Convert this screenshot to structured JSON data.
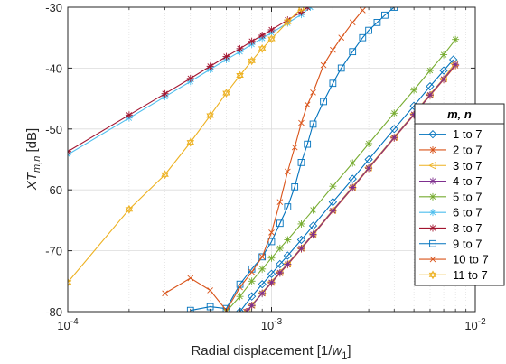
{
  "chart_data": {
    "type": "line",
    "xscale": "log",
    "xlim": [
      0.0001,
      0.01
    ],
    "ylim": [
      -80,
      -30
    ],
    "xlabel_main": "Radial displacement [1/",
    "xlabel_var": "w",
    "xlabel_sub": "1",
    "xlabel_end": "]",
    "ylabel_main": "XT",
    "ylabel_sub": "m,n",
    "ylabel_unit": " [dB]",
    "x_ticks": [
      {
        "value": 0.0001,
        "base": "10",
        "exp": "-4"
      },
      {
        "value": 0.001,
        "base": "10",
        "exp": "-3"
      },
      {
        "value": 0.01,
        "base": "10",
        "exp": "-2"
      }
    ],
    "y_ticks": [
      -80,
      -70,
      -60,
      -50,
      -40,
      -30
    ],
    "grid": true,
    "minor_grid_x": true,
    "legend_title": "m, n",
    "legend_position": "right",
    "series": [
      {
        "name": "1 to 7",
        "color": "#0072BD",
        "marker": "diamond",
        "x": [
          0.0007,
          0.0008,
          0.0009,
          0.001,
          0.0011,
          0.0012,
          0.0014,
          0.0016,
          0.002,
          0.0025,
          0.003,
          0.004,
          0.005,
          0.006,
          0.007,
          0.0078
        ],
        "y": [
          -80,
          -77.5,
          -75.5,
          -73.8,
          -72.2,
          -70.8,
          -68.2,
          -65.9,
          -62,
          -58.2,
          -55,
          -50,
          -46.2,
          -43,
          -40.4,
          -38.6
        ]
      },
      {
        "name": "2 to 7",
        "color": "#D95319",
        "marker": "star",
        "x": [
          0.00075,
          0.0008,
          0.0009,
          0.001,
          0.0011,
          0.0012,
          0.0014,
          0.0016,
          0.002,
          0.0025,
          0.003,
          0.004,
          0.005,
          0.006,
          0.007,
          0.008
        ],
        "y": [
          -80,
          -79,
          -77,
          -75.3,
          -73.7,
          -72.3,
          -69.7,
          -67.4,
          -63.5,
          -59.7,
          -56.5,
          -51.5,
          -47.7,
          -44.5,
          -41.9,
          -39.6
        ]
      },
      {
        "name": "3 to 7",
        "color": "#EDB120",
        "marker": "triangle-left",
        "x": [
          0.00076,
          0.0008,
          0.0009,
          0.001,
          0.0011,
          0.0012,
          0.0014,
          0.0016,
          0.002,
          0.0025,
          0.003,
          0.004,
          0.005,
          0.006,
          0.007,
          0.0079
        ],
        "y": [
          -80,
          -78.9,
          -76.9,
          -75.1,
          -73.5,
          -72.1,
          -69.5,
          -67.2,
          -63.3,
          -59.5,
          -56.3,
          -51.3,
          -47.5,
          -44.3,
          -41.7,
          -39.3
        ]
      },
      {
        "name": "4 to 7",
        "color": "#7E2F8E",
        "marker": "star",
        "x": [
          0.00076,
          0.0008,
          0.0009,
          0.001,
          0.0011,
          0.0012,
          0.0014,
          0.0016,
          0.002,
          0.0025,
          0.003,
          0.004,
          0.005,
          0.006,
          0.007,
          0.008
        ],
        "y": [
          -80,
          -79,
          -77,
          -75.2,
          -73.6,
          -72.2,
          -69.6,
          -67.3,
          -63.4,
          -59.6,
          -56.4,
          -51.4,
          -47.6,
          -44.4,
          -41.8,
          -39.4
        ]
      },
      {
        "name": "5 to 7",
        "color": "#77AC30",
        "marker": "star",
        "x": [
          0.0006,
          0.0007,
          0.0008,
          0.0009,
          0.001,
          0.0011,
          0.0012,
          0.0014,
          0.0016,
          0.002,
          0.0025,
          0.003,
          0.004,
          0.005,
          0.006,
          0.007,
          0.008
        ],
        "y": [
          -80,
          -77.5,
          -75,
          -73,
          -71.2,
          -69.6,
          -68.2,
          -65.6,
          -63.3,
          -59.4,
          -55.6,
          -52.4,
          -47.4,
          -43.6,
          -40.4,
          -37.8,
          -35.3
        ]
      },
      {
        "name": "6 to 7",
        "color": "#4DBEEE",
        "marker": "star",
        "x": [
          0.0001,
          0.0002,
          0.0003,
          0.0004,
          0.0005,
          0.0006,
          0.0007,
          0.0008,
          0.0009,
          0.001,
          0.0012,
          0.0014,
          0.00155
        ],
        "y": [
          -54.2,
          -48.2,
          -44.7,
          -42.2,
          -40.2,
          -38.6,
          -37.3,
          -36.1,
          -35.1,
          -34.2,
          -32.6,
          -31.2,
          -30
        ]
      },
      {
        "name": "8 to 7",
        "color": "#A2142F",
        "marker": "star",
        "x": [
          0.0001,
          0.0002,
          0.0003,
          0.0004,
          0.0005,
          0.0006,
          0.0007,
          0.0008,
          0.0009,
          0.001,
          0.0012,
          0.0014,
          0.0015
        ],
        "y": [
          -53.7,
          -47.7,
          -44.2,
          -41.7,
          -39.7,
          -38.1,
          -36.8,
          -35.6,
          -34.6,
          -33.7,
          -32.1,
          -30.8,
          -30
        ]
      },
      {
        "name": "9 to 7",
        "color": "#0072BD",
        "marker": "square",
        "x": [
          0.0004,
          0.0005,
          0.0006,
          0.0007,
          0.0008,
          0.0009,
          0.001,
          0.0011,
          0.0012,
          0.0013,
          0.0014,
          0.0015,
          0.0016,
          0.0018,
          0.002,
          0.0022,
          0.0025,
          0.0028,
          0.003,
          0.0033,
          0.0036,
          0.004
        ],
        "y": [
          -79.8,
          -79.2,
          -79.5,
          -75.5,
          -73,
          -71,
          -68.5,
          -65.5,
          -62.8,
          -59.5,
          -55.5,
          -52.5,
          -49.2,
          -45.5,
          -42.5,
          -40,
          -37.3,
          -35,
          -33.8,
          -32.5,
          -31.3,
          -30
        ]
      },
      {
        "name": "10 to 7",
        "color": "#D95319",
        "marker": "x",
        "x": [
          0.0003,
          0.0004,
          0.0005,
          0.0006,
          0.0007,
          0.0008,
          0.0009,
          0.001,
          0.0011,
          0.0012,
          0.0013,
          0.0014,
          0.0015,
          0.0016,
          0.0018,
          0.002,
          0.0022,
          0.0025,
          0.0028
        ],
        "y": [
          -77,
          -74.5,
          -76.5,
          -79.8,
          -76,
          -73.5,
          -71,
          -67,
          -62,
          -57,
          -53,
          -49,
          -46,
          -44,
          -39.5,
          -37,
          -35,
          -32.5,
          -30.5
        ]
      },
      {
        "name": "11 to 7",
        "color": "#EDB120",
        "marker": "hexagram",
        "x": [
          0.0001,
          0.0002,
          0.0003,
          0.0004,
          0.0005,
          0.0006,
          0.0007,
          0.0008,
          0.0009,
          0.001,
          0.0012,
          0.0014
        ],
        "y": [
          -75.2,
          -63.2,
          -57.5,
          -52.2,
          -47.8,
          -44.1,
          -41.2,
          -38.8,
          -36.8,
          -35.2,
          -32.4,
          -30.2
        ]
      }
    ]
  }
}
